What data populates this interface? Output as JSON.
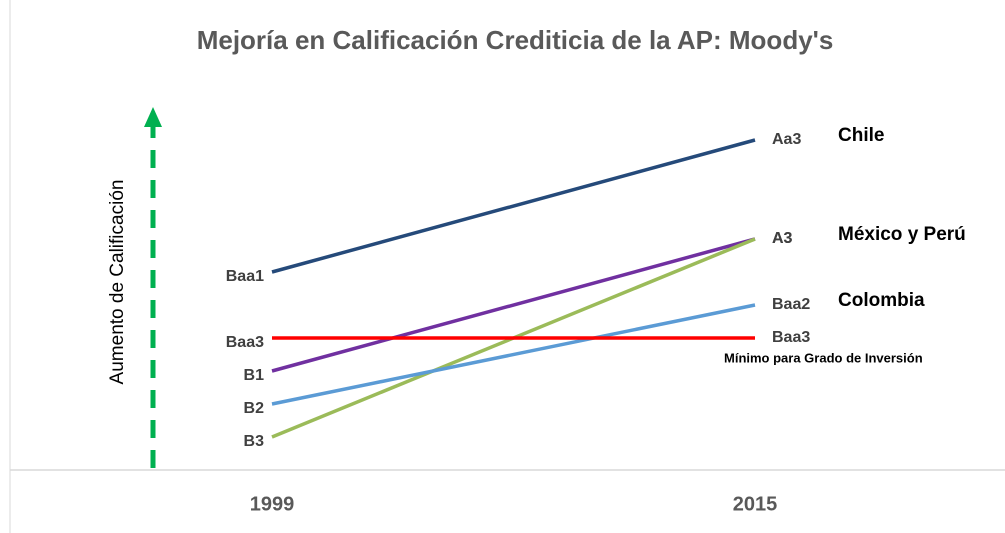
{
  "chart_data": {
    "type": "line",
    "title": "Mejoría en Calificación Crediticia de la AP: Moody's",
    "ylabel": "Aumento de Calificación",
    "categories": [
      "1999",
      "2015"
    ],
    "ylim": [
      -1,
      11
    ],
    "series": [
      {
        "name": "Chile",
        "color": "#254a7a",
        "values": [
          5,
          9
        ],
        "value_labels": [
          "Baa1",
          "Aa3"
        ]
      },
      {
        "name": "México y Perú",
        "color": "#7030a0",
        "values": [
          2,
          6
        ],
        "value_labels": [
          "B1",
          "A3"
        ]
      },
      {
        "color": "#9bbb59",
        "values": [
          0,
          6
        ],
        "value_labels": [
          "B3",
          "A3"
        ]
      },
      {
        "name": "Colombia",
        "color": "#5b9bd5",
        "values": [
          1,
          4
        ],
        "value_labels": [
          "B2",
          "Baa2"
        ]
      },
      {
        "name": "Mínimo para Grado de Inversión",
        "color": "#ff0000",
        "values": [
          3,
          3
        ],
        "value_labels": [
          "Baa3",
          "Baa3"
        ]
      }
    ]
  }
}
